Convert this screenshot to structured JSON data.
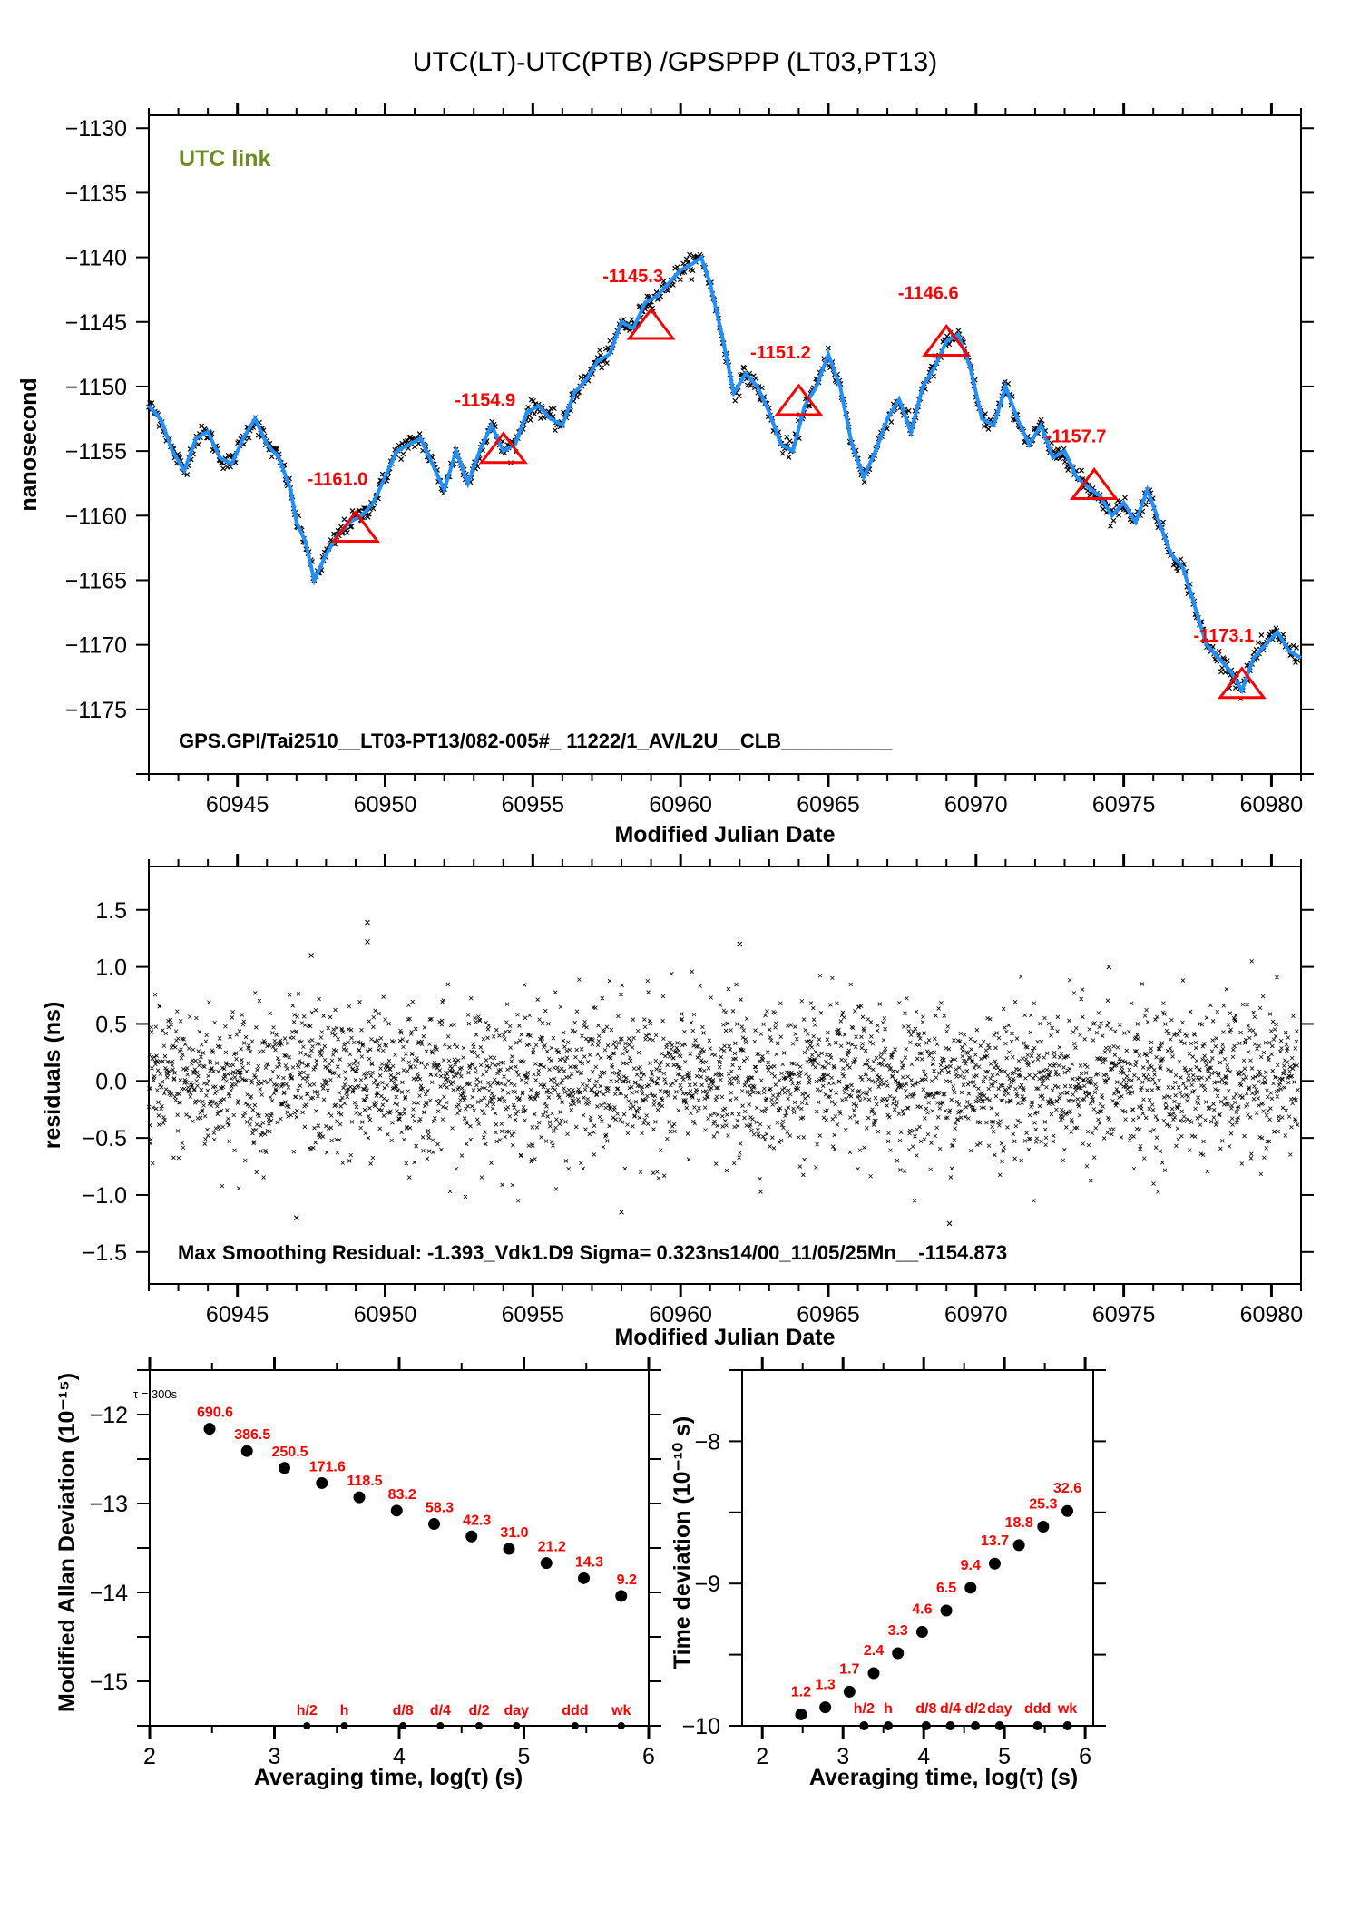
{
  "title": "UTC(LT)-UTC(PTB)  /GPSPPP  (LT03,PT13)",
  "colors": {
    "smooth_line": "#1e90ff",
    "raw_points": "#000000",
    "markers": "#ff0000",
    "link_label": "#6b8e23"
  },
  "chart_data": [
    {
      "id": "time-series",
      "type": "line",
      "title": "UTC(LT)-UTC(PTB)  /GPSPPP  (LT03,PT13)",
      "xlabel": "Modified Julian Date",
      "ylabel": "nanosecond",
      "xlim": [
        60942,
        60981
      ],
      "ylim": [
        -1180,
        -1129
      ],
      "xticks": [
        60945,
        60950,
        60955,
        60960,
        60965,
        60970,
        60975,
        60980
      ],
      "xtick_labels": [
        "60945",
        "60950",
        "60955",
        "60960",
        "60965",
        "60970",
        "60975",
        "60980"
      ],
      "yticks": [
        -1130,
        -1135,
        -1140,
        -1145,
        -1150,
        -1155,
        -1160,
        -1165,
        -1170,
        -1175
      ],
      "ytick_labels": [
        "−1130",
        "−1135",
        "−1140",
        "−1145",
        "−1150",
        "−1155",
        "−1160",
        "−1165",
        "−1170",
        "−1175"
      ],
      "link_label": "UTC link",
      "info_text": "GPS.GPI/Tai2510__LT03-PT13/082-005#_  11222/1_AV/L2U__CLB__________",
      "series": [
        {
          "name": "smoothed",
          "x": [
            60942.0,
            60942.4,
            60942.8,
            60943.2,
            60943.6,
            60944.0,
            60944.4,
            60944.8,
            60945.2,
            60945.6,
            60946.0,
            60946.4,
            60946.8,
            60947.0,
            60947.3,
            60947.6,
            60948.0,
            60948.4,
            60948.8,
            60949.2,
            60949.6,
            60950.0,
            60950.4,
            60950.8,
            60951.2,
            60951.6,
            60952.0,
            60952.4,
            60952.8,
            60953.2,
            60953.6,
            60954.0,
            60954.4,
            60954.8,
            60955.2,
            60955.6,
            60956.0,
            60956.4,
            60956.8,
            60957.2,
            60957.6,
            60958.0,
            60958.4,
            60958.8,
            60959.2,
            60959.6,
            60960.0,
            60960.4,
            60960.7,
            60961.0,
            60961.4,
            60961.8,
            60962.2,
            60962.6,
            60963.0,
            60963.4,
            60963.8,
            60964.2,
            60964.6,
            60965.0,
            60965.4,
            60965.8,
            60966.2,
            60966.6,
            60967.0,
            60967.4,
            60967.8,
            60968.2,
            60968.6,
            60969.0,
            60969.4,
            60969.8,
            60970.2,
            60970.6,
            60971.0,
            60971.4,
            60971.8,
            60972.2,
            60972.6,
            60973.0,
            60973.4,
            60973.8,
            60974.2,
            60974.6,
            60975.0,
            60975.4,
            60975.8,
            60976.2,
            60976.6,
            60977.0,
            60977.4,
            60977.8,
            60978.2,
            60978.6,
            60979.0,
            60979.4,
            60979.8,
            60980.2,
            60980.6,
            60981.0
          ],
          "y": [
            -1151.5,
            -1152.5,
            -1155.0,
            -1156.5,
            -1154.0,
            -1153.5,
            -1155.5,
            -1156.0,
            -1154.0,
            -1152.5,
            -1154.5,
            -1155.5,
            -1158.0,
            -1160.5,
            -1162.0,
            -1165.0,
            -1163.0,
            -1161.5,
            -1160.5,
            -1160.0,
            -1159.0,
            -1157.0,
            -1155.0,
            -1154.5,
            -1154.0,
            -1156.0,
            -1158.0,
            -1155.0,
            -1157.5,
            -1155.0,
            -1153.0,
            -1155.0,
            -1154.5,
            -1152.0,
            -1151.5,
            -1152.5,
            -1153.0,
            -1150.5,
            -1149.5,
            -1148.0,
            -1147.5,
            -1145.0,
            -1145.5,
            -1143.5,
            -1143.0,
            -1142.0,
            -1141.0,
            -1140.5,
            -1140.0,
            -1142.0,
            -1146.0,
            -1150.5,
            -1149.0,
            -1150.0,
            -1152.0,
            -1154.5,
            -1155.0,
            -1151.5,
            -1150.0,
            -1147.5,
            -1150.0,
            -1154.5,
            -1157.0,
            -1155.0,
            -1152.5,
            -1151.0,
            -1153.5,
            -1150.0,
            -1148.5,
            -1146.5,
            -1146.0,
            -1148.5,
            -1152.5,
            -1153.0,
            -1150.0,
            -1152.5,
            -1154.5,
            -1153.0,
            -1155.5,
            -1155.0,
            -1157.0,
            -1157.8,
            -1158.5,
            -1160.0,
            -1159.0,
            -1160.5,
            -1158.0,
            -1160.5,
            -1163.0,
            -1164.0,
            -1167.0,
            -1170.0,
            -1171.0,
            -1172.0,
            -1173.5,
            -1171.0,
            -1170.0,
            -1169.0,
            -1170.5,
            -1171.0
          ]
        }
      ],
      "markers": [
        {
          "x": 60949,
          "y": -1161.0,
          "label": "-1161.0"
        },
        {
          "x": 60954,
          "y": -1154.9,
          "label": "-1154.9"
        },
        {
          "x": 60959,
          "y": -1145.3,
          "label": "-1145.3"
        },
        {
          "x": 60964,
          "y": -1151.2,
          "label": "-1151.2"
        },
        {
          "x": 60969,
          "y": -1146.6,
          "label": "-1146.6"
        },
        {
          "x": 60974,
          "y": -1157.7,
          "label": "-1157.7"
        },
        {
          "x": 60979,
          "y": -1173.1,
          "label": "-1173.1"
        }
      ]
    },
    {
      "id": "residuals",
      "type": "scatter",
      "xlabel": "Modified Julian Date",
      "ylabel": "residuals (ns)",
      "xlim": [
        60942,
        60981
      ],
      "ylim": [
        -1.78,
        1.88
      ],
      "xticks": [
        60945,
        60950,
        60955,
        60960,
        60965,
        60970,
        60975,
        60980
      ],
      "xtick_labels": [
        "60945",
        "60950",
        "60955",
        "60960",
        "60965",
        "60970",
        "60975",
        "60980"
      ],
      "yticks": [
        1.5,
        1.0,
        0.5,
        0.0,
        -0.5,
        -1.0,
        -1.5
      ],
      "ytick_labels": [
        "1.5",
        "1.0",
        "0.5",
        "0.0",
        "−0.5",
        "−1.0",
        "−1.5"
      ],
      "sigma_ns": 0.323,
      "max_residual_ns": -1.393,
      "outliers": [
        {
          "x": 60949.4,
          "y": 1.39
        },
        {
          "x": 60949.4,
          "y": 1.22
        },
        {
          "x": 60947.5,
          "y": 1.1
        },
        {
          "x": 60962.0,
          "y": 1.2
        },
        {
          "x": 60947.0,
          "y": -1.2
        },
        {
          "x": 60969.1,
          "y": -1.25
        },
        {
          "x": 60958.0,
          "y": -1.15
        },
        {
          "x": 60974.5,
          "y": 1.0
        }
      ],
      "info_text": "Max Smoothing Residual: -1.393_Vdk1.D9  Sigma= 0.323ns14/00_11/05/25Mn__-1154.873"
    },
    {
      "id": "mdev",
      "type": "scatter",
      "xlabel": "Averaging time, log(τ) (s)",
      "ylabel": "Modified Allan Deviation (10⁻¹⁵)",
      "xlim": [
        2,
        6
      ],
      "ylim": [
        -15.5,
        -11.5
      ],
      "xticks": [
        2,
        3,
        4,
        5,
        6
      ],
      "xtick_labels": [
        "2",
        "3",
        "4",
        "5",
        "6"
      ],
      "yticks": [
        -12,
        -13,
        -14,
        -15
      ],
      "ytick_labels": [
        "−12",
        "−13",
        "−14",
        "−15"
      ],
      "tau0_label": "τ = 300s",
      "x": [
        2.48,
        2.78,
        3.08,
        3.38,
        3.68,
        3.98,
        4.28,
        4.58,
        4.88,
        5.18,
        5.48,
        5.78
      ],
      "y": [
        -12.16,
        -12.41,
        -12.6,
        -12.77,
        -12.93,
        -13.08,
        -13.23,
        -13.37,
        -13.51,
        -13.67,
        -13.84,
        -14.04
      ],
      "labels": [
        "690.6",
        "386.5",
        "250.5",
        "171.6",
        "118.5",
        "83.2",
        "58.3",
        "42.3",
        "31.0",
        "21.2",
        "14.3",
        "9.2"
      ],
      "time_markers": [
        {
          "x": 3.26,
          "label": "h/2"
        },
        {
          "x": 3.56,
          "label": "h"
        },
        {
          "x": 4.03,
          "label": "d/8"
        },
        {
          "x": 4.33,
          "label": "d/4"
        },
        {
          "x": 4.64,
          "label": "d/2"
        },
        {
          "x": 4.94,
          "label": "day"
        },
        {
          "x": 5.41,
          "label": "ddd"
        },
        {
          "x": 5.78,
          "label": "wk"
        }
      ]
    },
    {
      "id": "tdev",
      "type": "scatter",
      "xlabel": "Averaging time, log(τ) (s)",
      "ylabel": "Time deviation (10⁻¹⁰ s)",
      "xlim": [
        1.75,
        6.1
      ],
      "ylim": [
        -10,
        -7.5
      ],
      "xticks": [
        2,
        3,
        4,
        5,
        6
      ],
      "xtick_labels": [
        "2",
        "3",
        "4",
        "5",
        "6"
      ],
      "yticks": [
        -8,
        -9,
        -10
      ],
      "ytick_labels": [
        "−8",
        "−9",
        "−10"
      ],
      "x": [
        2.48,
        2.78,
        3.08,
        3.38,
        3.68,
        3.98,
        4.28,
        4.58,
        4.88,
        5.18,
        5.48,
        5.78
      ],
      "y": [
        -9.92,
        -9.87,
        -9.76,
        -9.63,
        -9.49,
        -9.34,
        -9.19,
        -9.03,
        -8.86,
        -8.73,
        -8.6,
        -8.49
      ],
      "labels": [
        "1.2",
        "1.3",
        "1.7",
        "2.4",
        "3.3",
        "4.6",
        "6.5",
        "9.4",
        "13.7",
        "18.8",
        "25.3",
        "32.6"
      ],
      "time_markers": [
        {
          "x": 3.26,
          "label": "h/2"
        },
        {
          "x": 3.56,
          "label": "h"
        },
        {
          "x": 4.03,
          "label": "d/8"
        },
        {
          "x": 4.33,
          "label": "d/4"
        },
        {
          "x": 4.64,
          "label": "d/2"
        },
        {
          "x": 4.94,
          "label": "day"
        },
        {
          "x": 5.41,
          "label": "ddd"
        },
        {
          "x": 5.78,
          "label": "wk"
        }
      ]
    }
  ]
}
